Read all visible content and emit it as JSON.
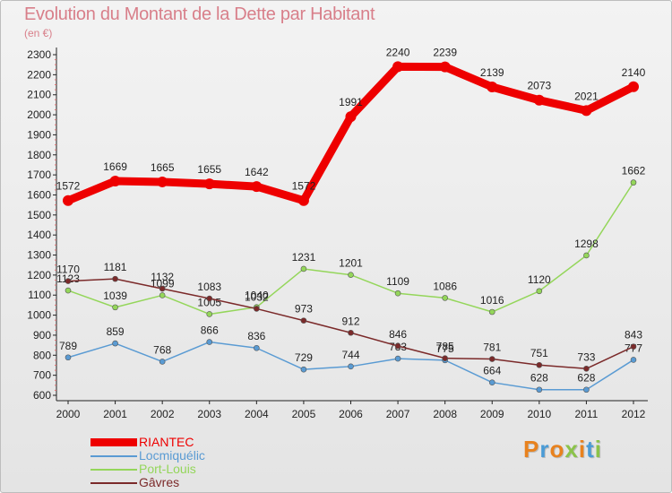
{
  "title": "Evolution du Montant de la Dette par Habitant",
  "subtitle": "(en €)",
  "logo_text": "Proxiti",
  "logo_colors": [
    "#e8821e",
    "#4a9bd6",
    "#e8821e",
    "#8bc34a",
    "#e8821e",
    "#4a9bd6",
    "#8bc34a"
  ],
  "chart_data": {
    "type": "line",
    "x": [
      "2000",
      "2001",
      "2002",
      "2003",
      "2004",
      "2005",
      "2006",
      "2007",
      "2008",
      "2009",
      "2010",
      "2011",
      "2012"
    ],
    "ylim": [
      600,
      2300
    ],
    "yticks": [
      600,
      700,
      800,
      900,
      1000,
      1100,
      1200,
      1300,
      1400,
      1500,
      1600,
      1700,
      1800,
      1900,
      2000,
      2100,
      2200,
      2300
    ],
    "grid": false,
    "legend_position": "bottom-left",
    "series": [
      {
        "name": "RIANTEC",
        "color": "#ee0000",
        "values": [
          1572,
          1669,
          1665,
          1655,
          1642,
          1572,
          1991,
          2240,
          2239,
          2139,
          2073,
          2021,
          2140
        ]
      },
      {
        "name": "Locmiquélic",
        "color": "#5a9bd3",
        "values": [
          789,
          859,
          768,
          866,
          836,
          729,
          744,
          783,
          775,
          664,
          628,
          628,
          777
        ]
      },
      {
        "name": "Port-Louis",
        "color": "#94d65a",
        "values": [
          1123,
          1039,
          1099,
          1005,
          1040,
          1231,
          1201,
          1109,
          1086,
          1016,
          1120,
          1298,
          1662
        ]
      },
      {
        "name": "Gâvres",
        "color": "#7b2a2a",
        "values": [
          1170,
          1181,
          1132,
          1083,
          1032,
          973,
          912,
          846,
          785,
          781,
          751,
          733,
          843
        ]
      }
    ]
  }
}
